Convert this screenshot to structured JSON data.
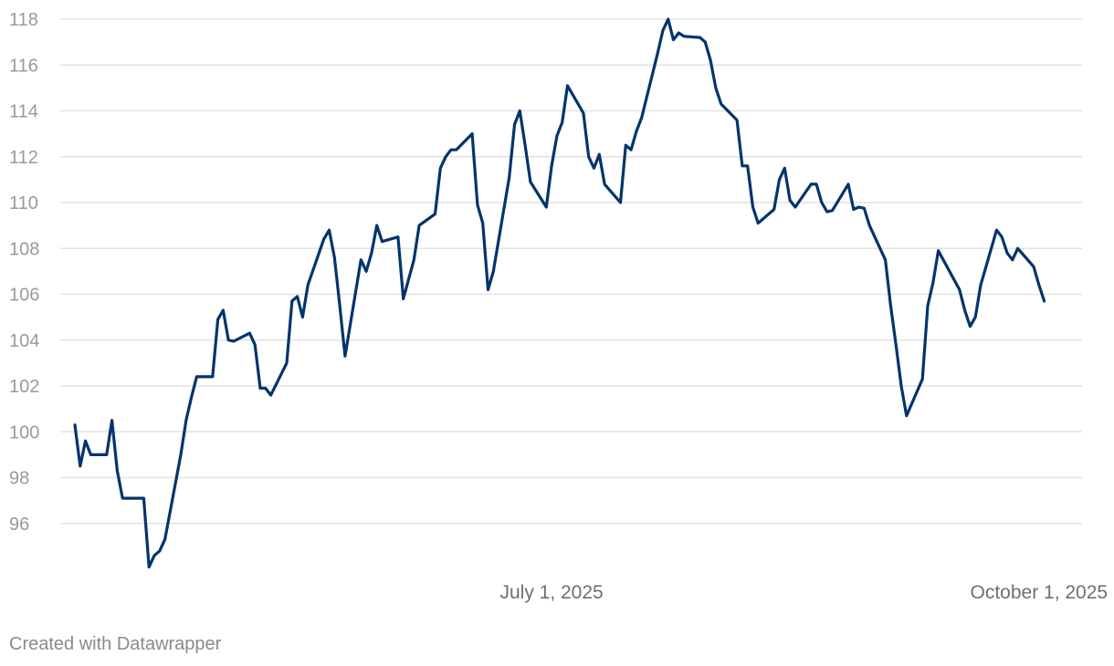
{
  "chart_data": {
    "type": "line",
    "title": "",
    "xlabel": "",
    "ylabel": "",
    "grid": true,
    "x_range": [
      "2025-04-02",
      "2025-10-10"
    ],
    "ylim": [
      94,
      118
    ],
    "y_ticks": [
      96,
      98,
      100,
      102,
      104,
      106,
      108,
      110,
      112,
      114,
      116,
      118
    ],
    "x_ticks": [
      {
        "value": "2025-07-01",
        "label": "July 1, 2025"
      },
      {
        "value": "2025-10-01",
        "label": "October 1, 2025"
      }
    ],
    "series": [
      {
        "color": "#03346b",
        "points": [
          [
            "2025-04-02",
            100.3
          ],
          [
            "2025-04-03",
            98.5
          ],
          [
            "2025-04-04",
            99.6
          ],
          [
            "2025-04-05",
            99.0
          ],
          [
            "2025-04-08",
            99.0
          ],
          [
            "2025-04-09",
            100.5
          ],
          [
            "2025-04-10",
            98.3
          ],
          [
            "2025-04-11",
            97.1
          ],
          [
            "2025-04-15",
            97.1
          ],
          [
            "2025-04-16",
            94.1
          ],
          [
            "2025-04-17",
            94.6
          ],
          [
            "2025-04-18",
            94.8
          ],
          [
            "2025-04-19",
            95.3
          ],
          [
            "2025-04-22",
            99.0
          ],
          [
            "2025-04-23",
            100.5
          ],
          [
            "2025-04-24",
            101.5
          ],
          [
            "2025-04-25",
            102.4
          ],
          [
            "2025-04-28",
            102.4
          ],
          [
            "2025-04-29",
            104.9
          ],
          [
            "2025-04-30",
            105.3
          ],
          [
            "2025-05-01",
            104.0
          ],
          [
            "2025-05-02",
            103.95
          ],
          [
            "2025-05-05",
            104.3
          ],
          [
            "2025-05-06",
            103.8
          ],
          [
            "2025-05-07",
            101.9
          ],
          [
            "2025-05-08",
            101.9
          ],
          [
            "2025-05-09",
            101.6
          ],
          [
            "2025-05-12",
            103.0
          ],
          [
            "2025-05-13",
            105.7
          ],
          [
            "2025-05-14",
            105.9
          ],
          [
            "2025-05-15",
            105.0
          ],
          [
            "2025-05-16",
            106.4
          ],
          [
            "2025-05-19",
            108.4
          ],
          [
            "2025-05-20",
            108.8
          ],
          [
            "2025-05-21",
            107.6
          ],
          [
            "2025-05-22",
            105.5
          ],
          [
            "2025-05-23",
            103.3
          ],
          [
            "2025-05-26",
            107.5
          ],
          [
            "2025-05-27",
            107.0
          ],
          [
            "2025-05-28",
            107.8
          ],
          [
            "2025-05-29",
            109.0
          ],
          [
            "2025-05-30",
            108.3
          ],
          [
            "2025-06-02",
            108.5
          ],
          [
            "2025-06-03",
            105.8
          ],
          [
            "2025-06-05",
            107.5
          ],
          [
            "2025-06-06",
            109.0
          ],
          [
            "2025-06-09",
            109.5
          ],
          [
            "2025-06-10",
            111.5
          ],
          [
            "2025-06-11",
            112.0
          ],
          [
            "2025-06-12",
            112.3
          ],
          [
            "2025-06-13",
            112.3
          ],
          [
            "2025-06-16",
            113.0
          ],
          [
            "2025-06-17",
            109.9
          ],
          [
            "2025-06-18",
            109.1
          ],
          [
            "2025-06-19",
            106.2
          ],
          [
            "2025-06-20",
            107.0
          ],
          [
            "2025-06-23",
            111.1
          ],
          [
            "2025-06-24",
            113.4
          ],
          [
            "2025-06-25",
            114.0
          ],
          [
            "2025-06-26",
            112.5
          ],
          [
            "2025-06-27",
            110.9
          ],
          [
            "2025-06-30",
            109.8
          ],
          [
            "2025-07-01",
            111.6
          ],
          [
            "2025-07-02",
            112.9
          ],
          [
            "2025-07-03",
            113.5
          ],
          [
            "2025-07-04",
            115.1
          ],
          [
            "2025-07-07",
            113.9
          ],
          [
            "2025-07-08",
            112.0
          ],
          [
            "2025-07-09",
            111.5
          ],
          [
            "2025-07-10",
            112.1
          ],
          [
            "2025-07-11",
            110.8
          ],
          [
            "2025-07-14",
            110.0
          ],
          [
            "2025-07-15",
            112.5
          ],
          [
            "2025-07-16",
            112.3
          ],
          [
            "2025-07-17",
            113.1
          ],
          [
            "2025-07-18",
            113.7
          ],
          [
            "2025-07-21",
            116.5
          ],
          [
            "2025-07-22",
            117.5
          ],
          [
            "2025-07-23",
            118.0
          ],
          [
            "2025-07-24",
            117.1
          ],
          [
            "2025-07-25",
            117.4
          ],
          [
            "2025-07-26",
            117.25
          ],
          [
            "2025-07-29",
            117.2
          ],
          [
            "2025-07-30",
            117.0
          ],
          [
            "2025-07-31",
            116.2
          ],
          [
            "2025-08-01",
            115.0
          ],
          [
            "2025-08-02",
            114.3
          ],
          [
            "2025-08-05",
            113.6
          ],
          [
            "2025-08-06",
            111.6
          ],
          [
            "2025-08-07",
            111.6
          ],
          [
            "2025-08-08",
            109.8
          ],
          [
            "2025-08-09",
            109.1
          ],
          [
            "2025-08-12",
            109.7
          ],
          [
            "2025-08-13",
            111.0
          ],
          [
            "2025-08-14",
            111.5
          ],
          [
            "2025-08-15",
            110.1
          ],
          [
            "2025-08-16",
            109.8
          ],
          [
            "2025-08-19",
            110.8
          ],
          [
            "2025-08-20",
            110.8
          ],
          [
            "2025-08-21",
            110.0
          ],
          [
            "2025-08-22",
            109.6
          ],
          [
            "2025-08-23",
            109.65
          ],
          [
            "2025-08-26",
            110.8
          ],
          [
            "2025-08-27",
            109.7
          ],
          [
            "2025-08-28",
            109.8
          ],
          [
            "2025-08-29",
            109.75
          ],
          [
            "2025-08-30",
            109.0
          ],
          [
            "2025-09-02",
            107.5
          ],
          [
            "2025-09-03",
            105.5
          ],
          [
            "2025-09-04",
            103.8
          ],
          [
            "2025-09-05",
            102.0
          ],
          [
            "2025-09-06",
            100.7
          ],
          [
            "2025-09-09",
            102.3
          ],
          [
            "2025-09-10",
            105.5
          ],
          [
            "2025-09-11",
            106.5
          ],
          [
            "2025-09-12",
            107.9
          ],
          [
            "2025-09-16",
            106.2
          ],
          [
            "2025-09-17",
            105.3
          ],
          [
            "2025-09-18",
            104.6
          ],
          [
            "2025-09-19",
            105.0
          ],
          [
            "2025-09-20",
            106.4
          ],
          [
            "2025-09-23",
            108.8
          ],
          [
            "2025-09-24",
            108.5
          ],
          [
            "2025-09-25",
            107.8
          ],
          [
            "2025-09-26",
            107.5
          ],
          [
            "2025-09-27",
            108.0
          ],
          [
            "2025-09-30",
            107.2
          ],
          [
            "2025-10-01",
            106.4
          ],
          [
            "2025-10-02",
            105.7
          ]
        ]
      }
    ]
  },
  "footer": {
    "credit": "Created with Datawrapper"
  }
}
